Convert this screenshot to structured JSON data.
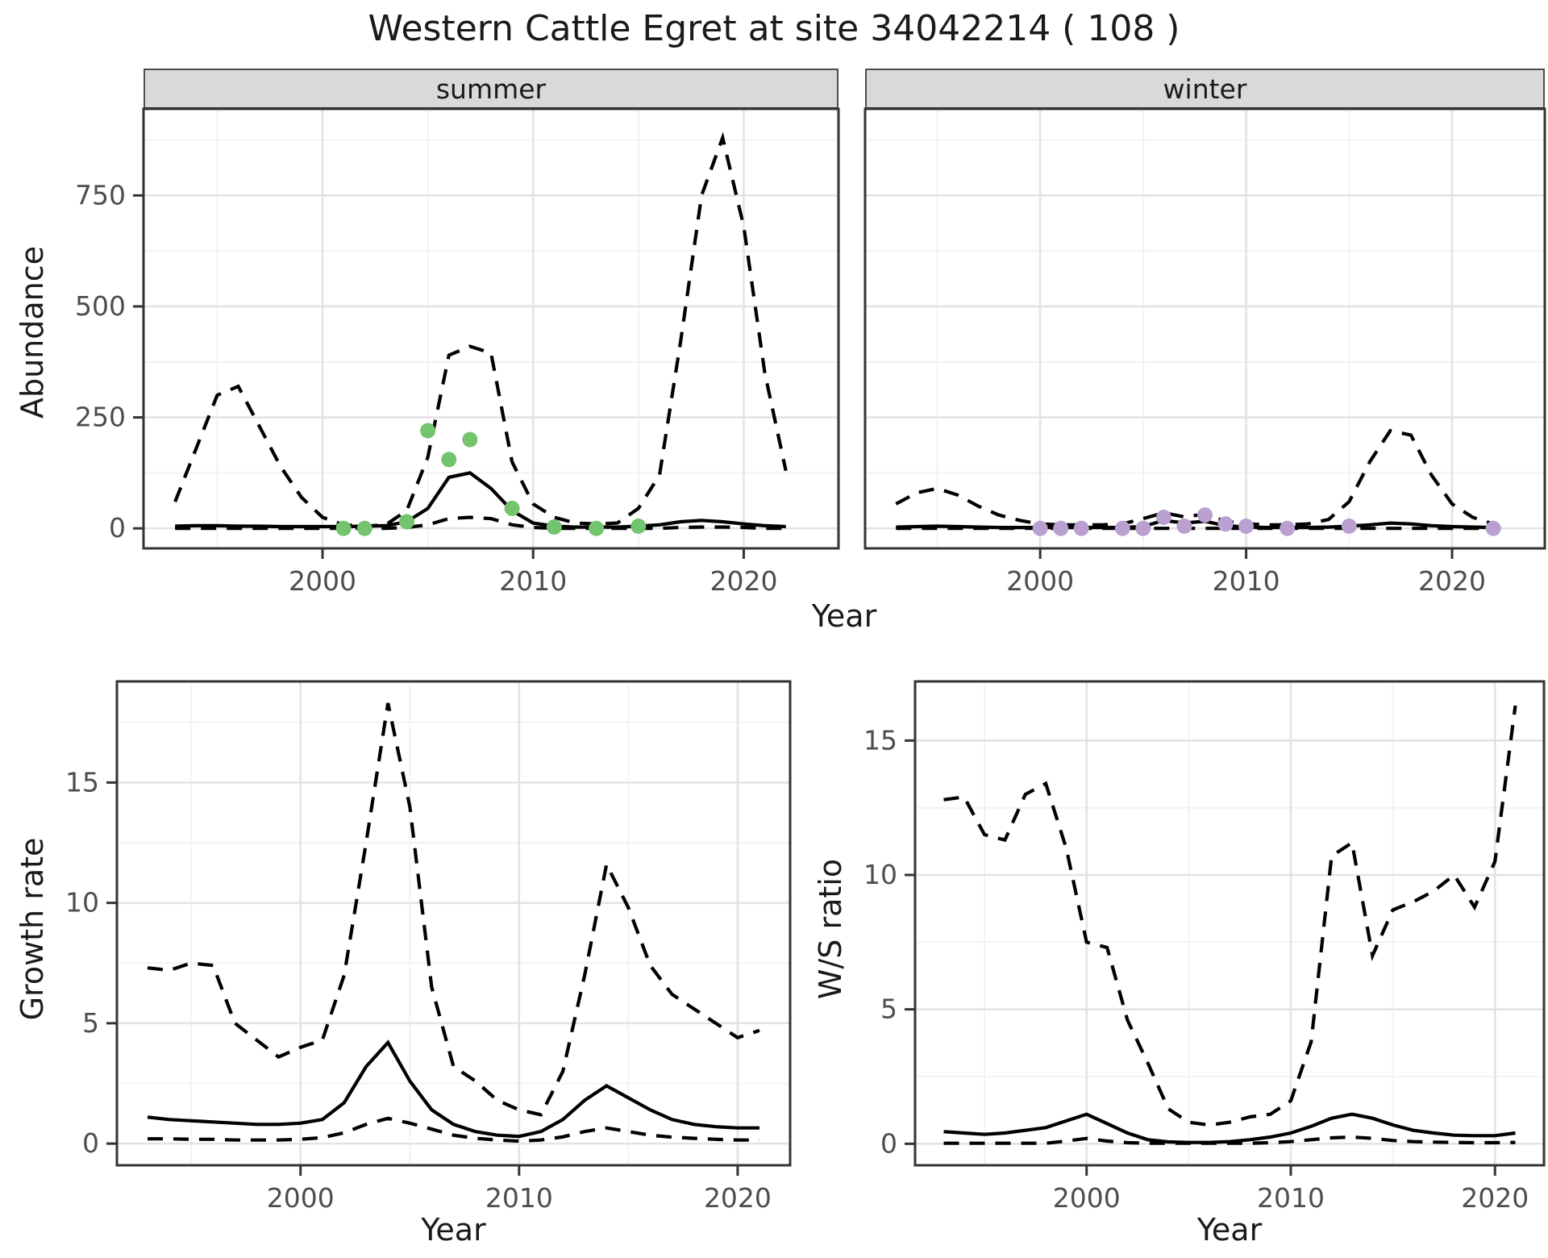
{
  "title": "Western Cattle Egret at site 34042214 ( 108 )",
  "labels": {
    "abundance": "Abundance",
    "growth": "Growth rate",
    "ws": "W/S ratio",
    "year": "Year",
    "summer": "summer",
    "winter": "winter"
  },
  "colors": {
    "observed_summer": "#74C36E",
    "observed_winter": "#B9A0D1",
    "line": "#000000",
    "grid_major": "#e3e3e3",
    "grid_minor": "#f1f1f1",
    "panel_border": "#333333",
    "strip_bg": "#d9d9d9",
    "tick_text": "#4d4d4d"
  },
  "chart_data": {
    "type": "line",
    "title": "Western Cattle Egret at site 34042214 ( 108 )",
    "legend": "none",
    "grid": "on",
    "panels": [
      {
        "id": "abundance_summer",
        "facet": "summer",
        "ylabel": "Abundance",
        "xlabel": "Year",
        "x": [
          1993,
          1994,
          1995,
          1996,
          1997,
          1998,
          1999,
          2000,
          2001,
          2002,
          2003,
          2004,
          2005,
          2006,
          2007,
          2008,
          2009,
          2010,
          2011,
          2012,
          2013,
          2014,
          2015,
          2016,
          2017,
          2018,
          2019,
          2020,
          2021,
          2022
        ],
        "series": [
          {
            "name": "upper_95ci",
            "linetype": "dashed",
            "values": [
              60,
              180,
              300,
              320,
              230,
              140,
              70,
              25,
              8,
              5,
              8,
              40,
              160,
              390,
              410,
              395,
              150,
              55,
              25,
              12,
              10,
              12,
              45,
              120,
              420,
              750,
              880,
              680,
              350,
              130
            ]
          },
          {
            "name": "median",
            "linetype": "solid",
            "values": [
              5,
              6,
              6,
              5,
              5,
              4,
              4,
              4,
              4,
              5,
              6,
              15,
              45,
              115,
              125,
              90,
              40,
              12,
              5,
              3,
              3,
              3,
              5,
              8,
              15,
              18,
              15,
              10,
              6,
              4
            ]
          },
          {
            "name": "lower_95ci",
            "linetype": "dashed",
            "values": [
              0,
              0,
              0,
              0,
              0,
              0,
              0,
              0,
              0,
              0,
              0,
              2,
              8,
              22,
              25,
              22,
              8,
              2,
              0,
              0,
              0,
              0,
              0,
              0,
              2,
              3,
              3,
              2,
              0,
              0
            ]
          }
        ],
        "observed_points": [
          [
            2001,
            0
          ],
          [
            2002,
            0
          ],
          [
            2004,
            15
          ],
          [
            2005,
            220
          ],
          [
            2006,
            155
          ],
          [
            2007,
            200
          ],
          [
            2009,
            45
          ],
          [
            2011,
            3
          ],
          [
            2013,
            0
          ],
          [
            2015,
            5
          ]
        ],
        "point_color": "#74C36E",
        "ylim": [
          -45,
          945
        ],
        "yticks": [
          0,
          250,
          500,
          750
        ],
        "yticks_minor": [
          125,
          375,
          625,
          875
        ],
        "xlim": [
          1991.5,
          2024.5
        ],
        "xticks": [
          2000,
          2010,
          2020
        ],
        "xticks_minor": [
          1995,
          2005,
          2015
        ]
      },
      {
        "id": "abundance_winter",
        "facet": "winter",
        "ylabel": "Abundance",
        "xlabel": "Year",
        "x": [
          1993,
          1994,
          1995,
          1996,
          1997,
          1998,
          1999,
          2000,
          2001,
          2002,
          2003,
          2004,
          2005,
          2006,
          2007,
          2008,
          2009,
          2010,
          2011,
          2012,
          2013,
          2014,
          2015,
          2016,
          2017,
          2018,
          2019,
          2020,
          2021,
          2022
        ],
        "series": [
          {
            "name": "upper_95ci",
            "linetype": "dashed",
            "values": [
              55,
              80,
              90,
              75,
              50,
              30,
              18,
              10,
              8,
              8,
              8,
              10,
              22,
              35,
              26,
              32,
              16,
              10,
              8,
              8,
              10,
              20,
              60,
              150,
              220,
              210,
              120,
              55,
              25,
              10
            ]
          },
          {
            "name": "median",
            "linetype": "solid",
            "values": [
              3,
              4,
              5,
              4,
              3,
              2,
              2,
              2,
              2,
              2,
              2,
              2,
              4,
              18,
              12,
              16,
              6,
              3,
              2,
              2,
              2,
              3,
              5,
              8,
              12,
              10,
              6,
              4,
              3,
              2
            ]
          },
          {
            "name": "lower_95ci",
            "linetype": "dashed",
            "values": [
              0,
              0,
              0,
              0,
              0,
              0,
              0,
              0,
              0,
              0,
              0,
              0,
              0,
              0,
              0,
              0,
              0,
              0,
              0,
              0,
              0,
              0,
              0,
              0,
              0,
              0,
              0,
              0,
              0,
              0
            ]
          }
        ],
        "observed_points": [
          [
            2000,
            0
          ],
          [
            2001,
            0
          ],
          [
            2002,
            0
          ],
          [
            2004,
            0
          ],
          [
            2005,
            0
          ],
          [
            2006,
            25
          ],
          [
            2007,
            5
          ],
          [
            2008,
            30
          ],
          [
            2009,
            10
          ],
          [
            2010,
            5
          ],
          [
            2012,
            0
          ],
          [
            2015,
            5
          ],
          [
            2022,
            0
          ]
        ],
        "point_color": "#B9A0D1",
        "ylim": [
          -45,
          945
        ],
        "yticks": [
          0,
          250,
          500,
          750
        ],
        "yticks_minor": [
          125,
          375,
          625,
          875
        ],
        "xlim": [
          1991.5,
          2024.5
        ],
        "xticks": [
          2000,
          2010,
          2020
        ],
        "xticks_minor": [
          1995,
          2005,
          2015
        ]
      },
      {
        "id": "growth_rate",
        "facet": "",
        "ylabel": "Growth rate",
        "xlabel": "Year",
        "x": [
          1993,
          1994,
          1995,
          1996,
          1997,
          1998,
          1999,
          2000,
          2001,
          2002,
          2003,
          2004,
          2005,
          2006,
          2007,
          2008,
          2009,
          2010,
          2011,
          2012,
          2013,
          2014,
          2015,
          2016,
          2017,
          2018,
          2019,
          2020,
          2021
        ],
        "series": [
          {
            "name": "upper_95ci",
            "linetype": "dashed",
            "values": [
              7.3,
              7.2,
              7.5,
              7.4,
              5.0,
              4.3,
              3.6,
              4.0,
              4.3,
              7.0,
              12.5,
              18.3,
              14.0,
              6.5,
              3.2,
              2.6,
              1.8,
              1.4,
              1.2,
              3.0,
              7.0,
              11.6,
              9.8,
              7.4,
              6.2,
              5.6,
              5.0,
              4.4,
              4.7
            ]
          },
          {
            "name": "median",
            "linetype": "solid",
            "values": [
              1.1,
              1.0,
              0.95,
              0.9,
              0.85,
              0.8,
              0.8,
              0.85,
              1.0,
              1.7,
              3.2,
              4.2,
              2.6,
              1.4,
              0.8,
              0.5,
              0.35,
              0.3,
              0.5,
              1.0,
              1.8,
              2.4,
              1.9,
              1.4,
              1.0,
              0.8,
              0.7,
              0.65,
              0.65
            ]
          },
          {
            "name": "lower_95ci",
            "linetype": "dashed",
            "values": [
              0.2,
              0.2,
              0.18,
              0.18,
              0.15,
              0.15,
              0.15,
              0.18,
              0.25,
              0.45,
              0.8,
              1.05,
              0.85,
              0.6,
              0.35,
              0.22,
              0.15,
              0.1,
              0.15,
              0.28,
              0.5,
              0.65,
              0.5,
              0.35,
              0.27,
              0.22,
              0.18,
              0.15,
              0.15
            ]
          }
        ],
        "observed_points": [],
        "point_color": "#000000",
        "ylim": [
          -0.9,
          19.2
        ],
        "yticks": [
          0,
          5,
          10,
          15
        ],
        "yticks_minor": [
          2.5,
          7.5,
          12.5,
          17.5
        ],
        "xlim": [
          1991.6,
          2022.4
        ],
        "xticks": [
          2000,
          2010,
          2020
        ],
        "xticks_minor": [
          1995,
          2005,
          2015
        ]
      },
      {
        "id": "ws_ratio",
        "facet": "",
        "ylabel": "W/S ratio",
        "xlabel": "Year",
        "x": [
          1993,
          1994,
          1995,
          1996,
          1997,
          1998,
          1999,
          2000,
          2001,
          2002,
          2003,
          2004,
          2005,
          2006,
          2007,
          2008,
          2009,
          2010,
          2011,
          2012,
          2013,
          2014,
          2015,
          2016,
          2017,
          2018,
          2019,
          2020,
          2021
        ],
        "series": [
          {
            "name": "upper_95ci",
            "linetype": "dashed",
            "values": [
              12.8,
              12.9,
              11.5,
              11.3,
              13.0,
              13.4,
              11.0,
              7.5,
              7.3,
              4.6,
              3.0,
              1.3,
              0.8,
              0.7,
              0.8,
              1.0,
              1.1,
              1.6,
              3.8,
              10.7,
              11.2,
              7.0,
              8.7,
              9.0,
              9.4,
              10.0,
              8.8,
              10.5,
              16.3
            ]
          },
          {
            "name": "median",
            "linetype": "solid",
            "values": [
              0.45,
              0.4,
              0.35,
              0.4,
              0.5,
              0.6,
              0.85,
              1.1,
              0.75,
              0.4,
              0.15,
              0.07,
              0.05,
              0.05,
              0.08,
              0.15,
              0.25,
              0.4,
              0.65,
              0.95,
              1.1,
              0.95,
              0.7,
              0.5,
              0.4,
              0.32,
              0.3,
              0.3,
              0.4
            ]
          },
          {
            "name": "lower_95ci",
            "linetype": "dashed",
            "values": [
              0.02,
              0.02,
              0.02,
              0.02,
              0.02,
              0.02,
              0.1,
              0.2,
              0.1,
              0.04,
              0.02,
              0.02,
              0.02,
              0.02,
              0.02,
              0.02,
              0.04,
              0.08,
              0.15,
              0.22,
              0.25,
              0.2,
              0.12,
              0.08,
              0.06,
              0.05,
              0.04,
              0.04,
              0.05
            ]
          }
        ],
        "observed_points": [],
        "point_color": "#000000",
        "ylim": [
          -0.8,
          17.2
        ],
        "yticks": [
          0,
          5,
          10,
          15
        ],
        "yticks_minor": [
          2.5,
          7.5,
          12.5
        ],
        "xlim": [
          1991.6,
          2022.4
        ],
        "xticks": [
          2000,
          2010,
          2020
        ],
        "xticks_minor": [
          1995,
          2005,
          2015
        ]
      }
    ]
  }
}
